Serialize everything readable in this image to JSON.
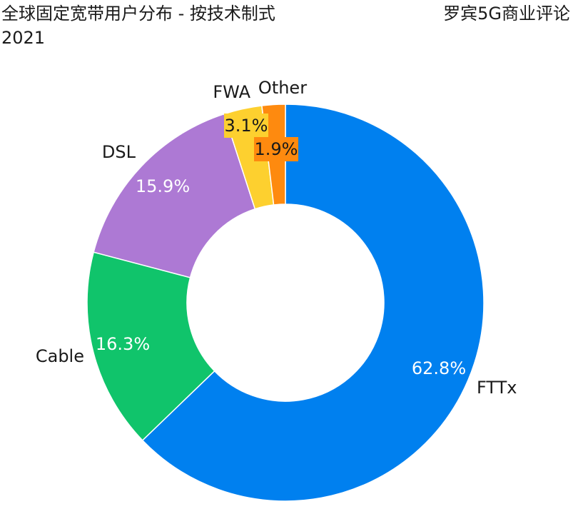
{
  "header": {
    "title_line1": "全球固定宽带用户分布 - 按技术制式",
    "title_line2": "2021",
    "source": "罗宾5G商业评论"
  },
  "chart_data": {
    "type": "pie",
    "title": "全球固定宽带用户分布 - 按技术制式 2021",
    "donut": true,
    "start": "12 o'clock, clockwise",
    "slices": [
      {
        "name": "FTTx",
        "value": 62.8,
        "label": "62.8%",
        "color": "#0080ef",
        "label_color": "#ffffff"
      },
      {
        "name": "Cable",
        "value": 16.3,
        "label": "16.3%",
        "color": "#10c46b",
        "label_color": "#ffffff"
      },
      {
        "name": "DSL",
        "value": 15.9,
        "label": "15.9%",
        "color": "#ad79d4",
        "label_color": "#ffffff"
      },
      {
        "name": "FWA",
        "value": 3.1,
        "label": "3.1%",
        "color": "#fdd02f",
        "label_color": "#1a1a1a"
      },
      {
        "name": "Other",
        "value": 1.9,
        "label": "1.9%",
        "color": "#fe8a0f",
        "label_color": "#1a1a1a"
      }
    ]
  }
}
